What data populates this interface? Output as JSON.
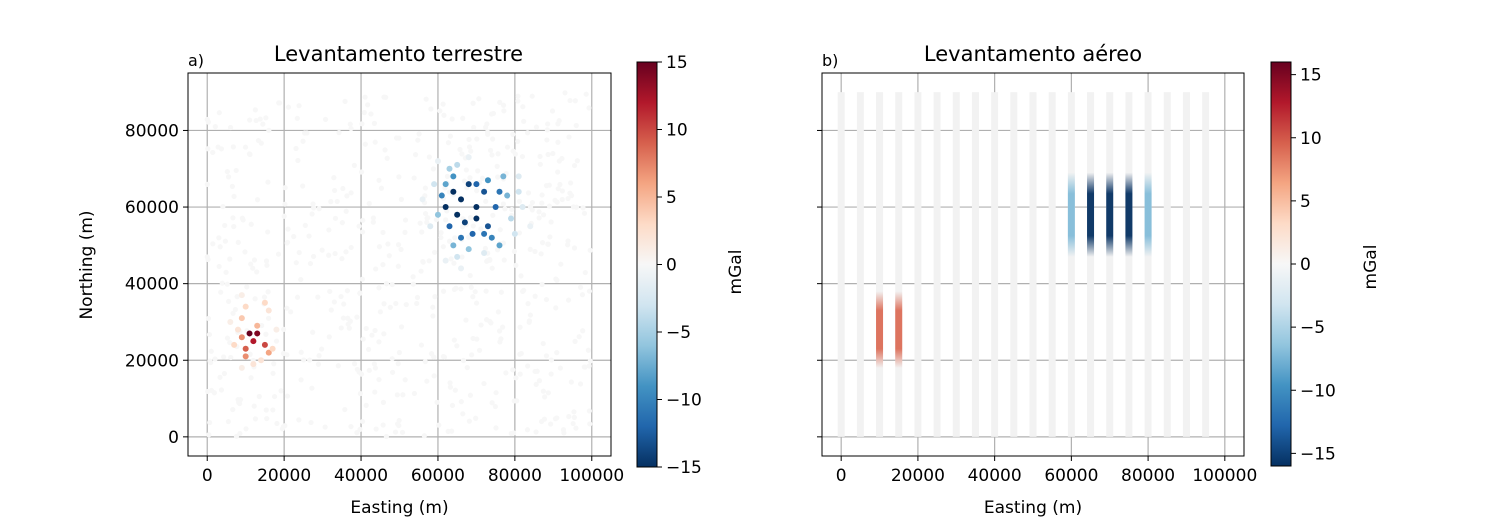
{
  "chart_data": [
    {
      "type": "scatter",
      "panel_label": "a)",
      "title": "Levantamento terrestre",
      "xlabel": "Easting (m)",
      "ylabel": "Northing (m)",
      "xlim": [
        -5000,
        105000
      ],
      "ylim": [
        -5000,
        95000
      ],
      "xticks": [
        0,
        20000,
        40000,
        60000,
        80000,
        100000
      ],
      "xtick_labels": [
        "0",
        "20000",
        "40000",
        "60000",
        "80000",
        "100000"
      ],
      "yticks": [
        0,
        20000,
        40000,
        60000,
        80000
      ],
      "ytick_labels": [
        "0",
        "20000",
        "40000",
        "60000",
        "80000"
      ],
      "grid": true,
      "colormap": "RdBu_r",
      "colorbar": {
        "label": "mGal",
        "vmin": -15,
        "vmax": 15,
        "ticks": [
          15,
          10,
          5,
          0,
          -5,
          -10,
          -15
        ],
        "tick_labels": [
          "15",
          "10",
          "5",
          "0",
          "−5",
          "−10",
          "−15"
        ]
      },
      "points": [
        {
          "x": 62000,
          "y": 60000,
          "v": -15
        },
        {
          "x": 64000,
          "y": 64000,
          "v": -15
        },
        {
          "x": 66000,
          "y": 62000,
          "v": -15
        },
        {
          "x": 68000,
          "y": 66000,
          "v": -14
        },
        {
          "x": 70000,
          "y": 60000,
          "v": -15
        },
        {
          "x": 72000,
          "y": 64000,
          "v": -13
        },
        {
          "x": 65000,
          "y": 58000,
          "v": -15
        },
        {
          "x": 67000,
          "y": 56000,
          "v": -14
        },
        {
          "x": 70000,
          "y": 57000,
          "v": -15
        },
        {
          "x": 73000,
          "y": 55000,
          "v": -13
        },
        {
          "x": 75000,
          "y": 60000,
          "v": -12
        },
        {
          "x": 76000,
          "y": 64000,
          "v": -11
        },
        {
          "x": 63000,
          "y": 55000,
          "v": -12
        },
        {
          "x": 66000,
          "y": 52000,
          "v": -11
        },
        {
          "x": 69000,
          "y": 53000,
          "v": -12
        },
        {
          "x": 72000,
          "y": 53000,
          "v": -11
        },
        {
          "x": 74000,
          "y": 52000,
          "v": -10
        },
        {
          "x": 61000,
          "y": 63000,
          "v": -10
        },
        {
          "x": 62000,
          "y": 66000,
          "v": -8
        },
        {
          "x": 64000,
          "y": 68000,
          "v": -9
        },
        {
          "x": 70000,
          "y": 66000,
          "v": -12
        },
        {
          "x": 73000,
          "y": 67000,
          "v": -9
        },
        {
          "x": 77000,
          "y": 68000,
          "v": -7
        },
        {
          "x": 78000,
          "y": 63000,
          "v": -7
        },
        {
          "x": 64000,
          "y": 50000,
          "v": -7
        },
        {
          "x": 68000,
          "y": 49000,
          "v": -6
        },
        {
          "x": 76000,
          "y": 50000,
          "v": -8
        },
        {
          "x": 60000,
          "y": 58000,
          "v": -6
        },
        {
          "x": 63000,
          "y": 70000,
          "v": -5
        },
        {
          "x": 65000,
          "y": 71000,
          "v": -4
        },
        {
          "x": 79000,
          "y": 57000,
          "v": -4
        },
        {
          "x": 81000,
          "y": 64000,
          "v": -3
        },
        {
          "x": 80000,
          "y": 53000,
          "v": -3
        },
        {
          "x": 65000,
          "y": 47000,
          "v": -3
        },
        {
          "x": 59000,
          "y": 66000,
          "v": -3
        },
        {
          "x": 58000,
          "y": 55000,
          "v": -2
        },
        {
          "x": 82000,
          "y": 60000,
          "v": -2
        },
        {
          "x": 81000,
          "y": 68000,
          "v": -2
        },
        {
          "x": 62000,
          "y": 46000,
          "v": -1
        },
        {
          "x": 72000,
          "y": 48000,
          "v": -2
        },
        {
          "x": 56000,
          "y": 62000,
          "v": -1
        },
        {
          "x": 60000,
          "y": 72000,
          "v": -1
        },
        {
          "x": 68000,
          "y": 73000,
          "v": -1
        },
        {
          "x": 84000,
          "y": 55000,
          "v": -1
        },
        {
          "x": 66000,
          "y": 44000,
          "v": -1
        },
        {
          "x": 11000,
          "y": 27000,
          "v": 15
        },
        {
          "x": 13000,
          "y": 27000,
          "v": 14
        },
        {
          "x": 12000,
          "y": 25000,
          "v": 12
        },
        {
          "x": 15000,
          "y": 24000,
          "v": 10
        },
        {
          "x": 10000,
          "y": 23000,
          "v": 9
        },
        {
          "x": 9000,
          "y": 26000,
          "v": 7
        },
        {
          "x": 16000,
          "y": 22000,
          "v": 6
        },
        {
          "x": 10000,
          "y": 21000,
          "v": 7
        },
        {
          "x": 13000,
          "y": 29000,
          "v": 5
        },
        {
          "x": 9000,
          "y": 31000,
          "v": 4
        },
        {
          "x": 10000,
          "y": 34000,
          "v": 3
        },
        {
          "x": 15000,
          "y": 35000,
          "v": 3
        },
        {
          "x": 7000,
          "y": 24000,
          "v": 3
        },
        {
          "x": 17000,
          "y": 23000,
          "v": 3
        },
        {
          "x": 8000,
          "y": 28000,
          "v": 2
        },
        {
          "x": 16000,
          "y": 33000,
          "v": 2
        },
        {
          "x": 12000,
          "y": 19000,
          "v": 2
        },
        {
          "x": 14000,
          "y": 20000,
          "v": 2
        },
        {
          "x": 9000,
          "y": 18000,
          "v": 1
        },
        {
          "x": 18000,
          "y": 28000,
          "v": 1
        },
        {
          "x": 6000,
          "y": 30000,
          "v": 1
        },
        {
          "x": 9000,
          "y": 37000,
          "v": 1
        }
      ]
    },
    {
      "type": "heatmap",
      "panel_label": "b)",
      "title": "Levantamento aéreo",
      "xlabel": "Easting (m)",
      "xlim": [
        -5000,
        105000
      ],
      "ylim": [
        -5000,
        95000
      ],
      "xticks": [
        0,
        20000,
        40000,
        60000,
        80000,
        100000
      ],
      "xtick_labels": [
        "0",
        "20000",
        "40000",
        "60000",
        "80000",
        "100000"
      ],
      "yticks": [
        0,
        20000,
        40000,
        60000,
        80000
      ],
      "grid": true,
      "colormap": "RdBu_r",
      "flight_lines": {
        "x": [
          0,
          5000,
          10000,
          15000,
          20000,
          25000,
          30000,
          35000,
          40000,
          45000,
          50000,
          55000,
          60000,
          65000,
          70000,
          75000,
          80000,
          85000,
          90000,
          95000
        ],
        "y_range": [
          0,
          90000
        ]
      },
      "anomalies": [
        {
          "x": 10000,
          "y_center": 28000,
          "y_half": 10000,
          "v": 9
        },
        {
          "x": 15000,
          "y_center": 28000,
          "y_half": 10000,
          "v": 9
        },
        {
          "x": 60000,
          "y_center": 58000,
          "y_half": 11000,
          "v": -7
        },
        {
          "x": 65000,
          "y_center": 58000,
          "y_half": 11000,
          "v": -16
        },
        {
          "x": 70000,
          "y_center": 58000,
          "y_half": 11000,
          "v": -16
        },
        {
          "x": 75000,
          "y_center": 58000,
          "y_half": 11000,
          "v": -16
        },
        {
          "x": 80000,
          "y_center": 58000,
          "y_half": 11000,
          "v": -7
        }
      ],
      "colorbar": {
        "label": "mGal",
        "vmin": -16,
        "vmax": 16,
        "ticks": [
          15,
          10,
          5,
          0,
          -5,
          -10,
          -15
        ],
        "tick_labels": [
          "15",
          "10",
          "5",
          "0",
          "−5",
          "−10",
          "−15"
        ]
      }
    }
  ]
}
